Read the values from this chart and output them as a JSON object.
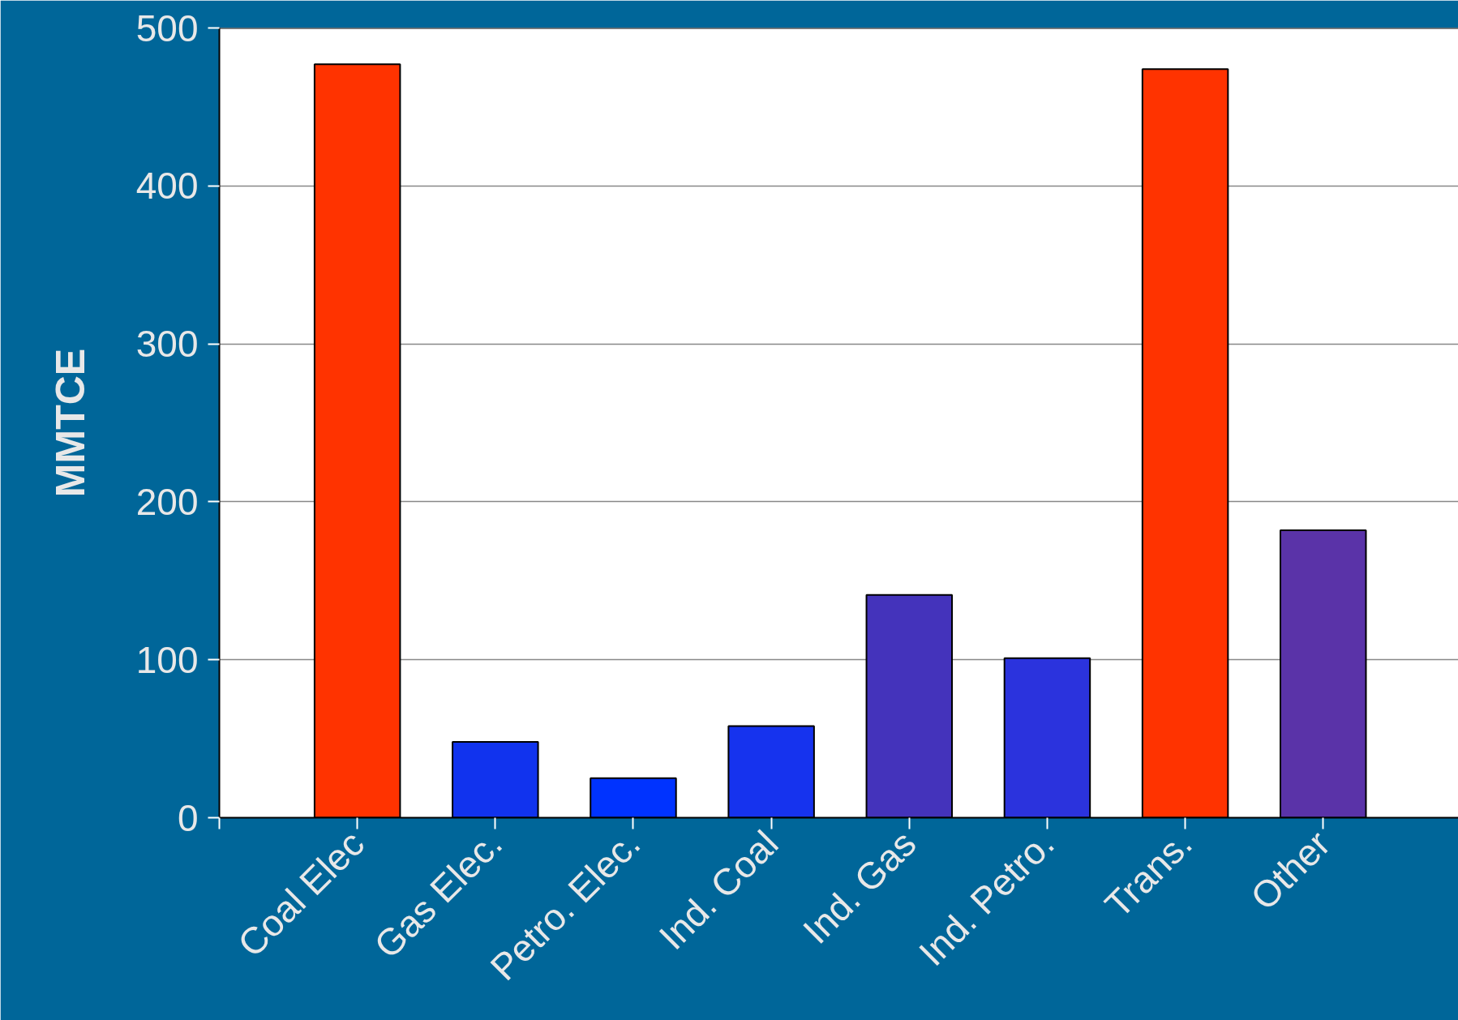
{
  "chart_data": {
    "type": "bar",
    "ylabel": "MMTCE",
    "categories": [
      "Coal Elec",
      "Gas Elec.",
      "Petro. Elec.",
      "Ind. Coal",
      "Ind. Gas",
      "Ind. Petro.",
      "Trans.",
      "Other"
    ],
    "values": [
      477,
      48,
      25,
      58,
      141,
      101,
      474,
      182
    ],
    "colors": [
      "#ff3300",
      "#1133ee",
      "#0033ff",
      "#1633ee",
      "#4433bb",
      "#2b33dd",
      "#ff3300",
      "#5a33a8"
    ],
    "ylim": [
      0,
      500
    ],
    "yticks": [
      0,
      100,
      200,
      300,
      400,
      500
    ],
    "grid": "y"
  }
}
